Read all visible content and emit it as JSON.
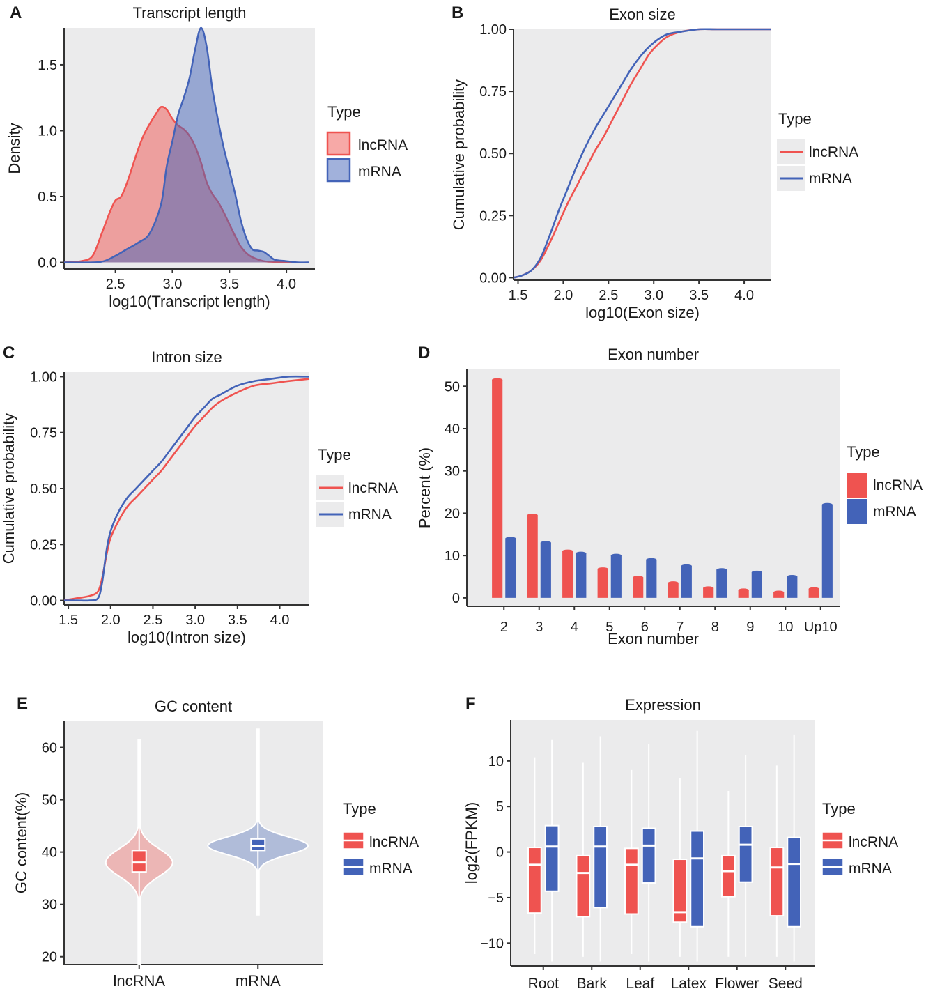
{
  "colors": {
    "lncrna": "#ef5350",
    "mrna": "#4363b8",
    "panel_bg": "#ebebec",
    "axis": "#333333"
  },
  "chart_data": [
    {
      "id": "A",
      "panel_label": "A",
      "type": "area",
      "title": "Transcript length",
      "xlabel": "log10(Transcript length)",
      "ylabel": "Density",
      "xlim": [
        2.05,
        4.25
      ],
      "ylim": [
        -0.05,
        1.78
      ],
      "xticks": [
        2.5,
        3.0,
        3.5,
        4.0
      ],
      "yticks": [
        0.0,
        0.5,
        1.0,
        1.5
      ],
      "xtick_labels": [
        "2.5",
        "3.0",
        "3.5",
        "4.0"
      ],
      "ytick_labels": [
        "0.0",
        "0.5",
        "1.0",
        "1.5"
      ],
      "legend": {
        "title": "Type",
        "entries": [
          "lncRNA",
          "mRNA"
        ]
      },
      "series": [
        {
          "name": "lncRNA",
          "x": [
            2.05,
            2.2,
            2.3,
            2.38,
            2.45,
            2.5,
            2.55,
            2.6,
            2.65,
            2.7,
            2.75,
            2.8,
            2.85,
            2.9,
            2.95,
            3.0,
            3.05,
            3.1,
            3.15,
            3.2,
            3.25,
            3.3,
            3.35,
            3.4,
            3.45,
            3.5,
            3.55,
            3.6,
            3.65,
            3.7,
            3.8,
            3.9,
            4.05
          ],
          "y": [
            0.0,
            0.01,
            0.05,
            0.22,
            0.38,
            0.47,
            0.5,
            0.6,
            0.73,
            0.86,
            0.97,
            1.05,
            1.12,
            1.18,
            1.16,
            1.09,
            1.04,
            1.01,
            0.96,
            0.88,
            0.76,
            0.61,
            0.52,
            0.46,
            0.38,
            0.29,
            0.2,
            0.12,
            0.07,
            0.04,
            0.01,
            0.004,
            0.0
          ]
        },
        {
          "name": "mRNA",
          "x": [
            2.05,
            2.3,
            2.4,
            2.5,
            2.6,
            2.7,
            2.8,
            2.9,
            2.95,
            3.0,
            3.05,
            3.1,
            3.15,
            3.2,
            3.25,
            3.3,
            3.35,
            3.4,
            3.45,
            3.5,
            3.55,
            3.6,
            3.65,
            3.7,
            3.75,
            3.8,
            3.85,
            3.9,
            4.0,
            4.1,
            4.2
          ],
          "y": [
            0.0,
            0.0,
            0.01,
            0.05,
            0.1,
            0.15,
            0.22,
            0.44,
            0.73,
            0.92,
            1.12,
            1.25,
            1.4,
            1.62,
            1.78,
            1.64,
            1.32,
            1.08,
            0.87,
            0.7,
            0.52,
            0.32,
            0.18,
            0.1,
            0.09,
            0.08,
            0.05,
            0.02,
            0.01,
            0.0,
            0.0
          ]
        }
      ]
    },
    {
      "id": "B",
      "panel_label": "B",
      "type": "line",
      "title": "Exon size",
      "xlabel": "log10(Exon size)",
      "ylabel": "Cumulative probability",
      "xlim": [
        1.45,
        4.3
      ],
      "ylim": [
        -0.01,
        1.0
      ],
      "xticks": [
        1.5,
        2.0,
        2.5,
        3.0,
        3.5,
        4.0
      ],
      "yticks": [
        0.0,
        0.25,
        0.5,
        0.75,
        1.0
      ],
      "xtick_labels": [
        "1.5",
        "2.0",
        "2.5",
        "3.0",
        "3.5",
        "4.0"
      ],
      "ytick_labels": [
        "0.00",
        "0.25",
        "0.50",
        "0.75",
        "1.00"
      ],
      "legend": {
        "title": "Type",
        "entries": [
          "lncRNA",
          "mRNA"
        ]
      },
      "series": [
        {
          "name": "lncRNA",
          "x": [
            1.45,
            1.55,
            1.65,
            1.75,
            1.85,
            1.95,
            2.05,
            2.15,
            2.25,
            2.35,
            2.45,
            2.55,
            2.65,
            2.75,
            2.85,
            2.95,
            3.05,
            3.15,
            3.3,
            3.5,
            3.7,
            4.0,
            4.3
          ],
          "y": [
            0.0,
            0.01,
            0.03,
            0.07,
            0.14,
            0.22,
            0.3,
            0.37,
            0.44,
            0.51,
            0.57,
            0.64,
            0.71,
            0.78,
            0.84,
            0.9,
            0.94,
            0.97,
            0.99,
            1.0,
            1.0,
            1.0,
            1.0
          ]
        },
        {
          "name": "mRNA",
          "x": [
            1.45,
            1.55,
            1.65,
            1.75,
            1.85,
            1.95,
            2.05,
            2.15,
            2.25,
            2.35,
            2.45,
            2.55,
            2.65,
            2.75,
            2.85,
            2.95,
            3.05,
            3.15,
            3.3,
            3.5,
            3.7,
            4.0,
            4.3
          ],
          "y": [
            0.0,
            0.01,
            0.03,
            0.08,
            0.17,
            0.27,
            0.36,
            0.45,
            0.53,
            0.6,
            0.66,
            0.72,
            0.78,
            0.84,
            0.89,
            0.93,
            0.96,
            0.98,
            0.99,
            1.0,
            1.0,
            1.0,
            1.0
          ]
        }
      ]
    },
    {
      "id": "C",
      "panel_label": "C",
      "type": "line",
      "title": "Intron size",
      "xlabel": "log10(Intron size)",
      "ylabel": "Cumulative probability",
      "xlim": [
        1.45,
        4.35
      ],
      "ylim": [
        -0.02,
        1.02
      ],
      "xticks": [
        1.5,
        2.0,
        2.5,
        3.0,
        3.5,
        4.0
      ],
      "yticks": [
        0.0,
        0.25,
        0.5,
        0.75,
        1.0
      ],
      "xtick_labels": [
        "1.5",
        "2.0",
        "2.5",
        "3.0",
        "3.5",
        "4.0"
      ],
      "ytick_labels": [
        "0.00",
        "0.25",
        "0.50",
        "0.75",
        "1.00"
      ],
      "legend": {
        "title": "Type",
        "entries": [
          "lncRNA",
          "mRNA"
        ]
      },
      "series": [
        {
          "name": "lncRNA",
          "x": [
            1.45,
            1.6,
            1.75,
            1.85,
            1.9,
            1.95,
            2.0,
            2.1,
            2.2,
            2.3,
            2.4,
            2.5,
            2.6,
            2.7,
            2.8,
            2.9,
            3.0,
            3.1,
            3.2,
            3.3,
            3.5,
            3.7,
            3.9,
            4.1,
            4.35
          ],
          "y": [
            0.0,
            0.01,
            0.02,
            0.04,
            0.1,
            0.2,
            0.28,
            0.36,
            0.42,
            0.46,
            0.5,
            0.54,
            0.58,
            0.63,
            0.68,
            0.73,
            0.78,
            0.82,
            0.86,
            0.89,
            0.93,
            0.96,
            0.97,
            0.98,
            0.99
          ]
        },
        {
          "name": "mRNA",
          "x": [
            1.45,
            1.6,
            1.75,
            1.85,
            1.9,
            1.95,
            2.0,
            2.1,
            2.2,
            2.3,
            2.4,
            2.5,
            2.6,
            2.7,
            2.8,
            2.9,
            3.0,
            3.1,
            3.2,
            3.3,
            3.5,
            3.7,
            3.9,
            4.1,
            4.35
          ],
          "y": [
            0.0,
            0.0,
            0.0,
            0.01,
            0.08,
            0.22,
            0.31,
            0.4,
            0.46,
            0.5,
            0.54,
            0.58,
            0.62,
            0.67,
            0.72,
            0.77,
            0.82,
            0.86,
            0.9,
            0.92,
            0.96,
            0.98,
            0.99,
            1.0,
            1.0
          ]
        }
      ]
    },
    {
      "id": "D",
      "panel_label": "D",
      "type": "bar",
      "title": "Exon number",
      "xlabel": "Exon number",
      "ylabel": "Percent (%)",
      "ylim": [
        -2,
        54
      ],
      "yticks": [
        0,
        10,
        20,
        30,
        40,
        50
      ],
      "ytick_labels": [
        "0",
        "10",
        "20",
        "30",
        "40",
        "50"
      ],
      "categories": [
        "2",
        "3",
        "4",
        "5",
        "6",
        "7",
        "8",
        "9",
        "10",
        "Up10"
      ],
      "legend": {
        "title": "Type",
        "entries": [
          "lncRNA",
          "mRNA"
        ]
      },
      "series": [
        {
          "name": "lncRNA",
          "values": [
            51.5,
            19.5,
            11.0,
            6.8,
            4.8,
            3.5,
            2.3,
            1.8,
            1.3,
            2.1
          ]
        },
        {
          "name": "mRNA",
          "values": [
            14.0,
            13.0,
            10.5,
            10.0,
            9.0,
            7.5,
            6.6,
            6.0,
            5.0,
            22.0
          ]
        }
      ]
    },
    {
      "id": "E",
      "panel_label": "E",
      "type": "violin",
      "title": "GC content",
      "xlabel": "",
      "ylabel": "GC content(%)",
      "ylim": [
        18.5,
        65
      ],
      "yticks": [
        20,
        30,
        40,
        50,
        60
      ],
      "ytick_labels": [
        "20",
        "30",
        "40",
        "50",
        "60"
      ],
      "categories": [
        "lncRNA",
        "mRNA"
      ],
      "legend": {
        "title": "Type",
        "entries": [
          "lncRNA",
          "mRNA"
        ]
      },
      "series": [
        {
          "name": "lncRNA",
          "min": 18,
          "q1": 36.2,
          "median": 38.0,
          "q3": 40.3,
          "max": 61.5,
          "mode": 38.0
        },
        {
          "name": "mRNA",
          "min": 28,
          "q1": 40.3,
          "median": 41.2,
          "q3": 42.5,
          "max": 63.5,
          "mode": 41.2
        }
      ]
    },
    {
      "id": "F",
      "panel_label": "F",
      "type": "box",
      "title": "Expression",
      "xlabel": "",
      "ylabel": "log2(FPKM)",
      "ylim": [
        -12.5,
        14.5
      ],
      "yticks": [
        -10,
        -5,
        0,
        5,
        10
      ],
      "ytick_labels": [
        "−10",
        "−5",
        "0",
        "5",
        "10"
      ],
      "categories": [
        "Root",
        "Bark",
        "Leaf",
        "Latex",
        "Flower",
        "Seed"
      ],
      "legend": {
        "title": "Type",
        "entries": [
          "lncRNA",
          "mRNA"
        ]
      },
      "series": [
        {
          "name": "lncRNA",
          "boxes": [
            {
              "min": -11.2,
              "q1": -6.7,
              "median": -1.4,
              "q3": 0.5,
              "max": 10.4
            },
            {
              "min": -11.5,
              "q1": -7.1,
              "median": -2.3,
              "q3": -0.4,
              "max": 9.8
            },
            {
              "min": -11.2,
              "q1": -6.8,
              "median": -1.4,
              "q3": 0.4,
              "max": 9.0
            },
            {
              "min": -11.5,
              "q1": -7.7,
              "median": -6.6,
              "q3": -0.8,
              "max": 8.1
            },
            {
              "min": -11.5,
              "q1": -4.9,
              "median": -2.1,
              "q3": -0.4,
              "max": 6.7
            },
            {
              "min": -11.5,
              "q1": -7.0,
              "median": -1.7,
              "q3": 0.5,
              "max": 9.5
            }
          ]
        },
        {
          "name": "mRNA",
          "boxes": [
            {
              "min": -12.0,
              "q1": -4.3,
              "median": 0.6,
              "q3": 2.9,
              "max": 12.3
            },
            {
              "min": -12.0,
              "q1": -6.1,
              "median": 0.6,
              "q3": 2.8,
              "max": 12.7
            },
            {
              "min": -12.0,
              "q1": -3.4,
              "median": 0.7,
              "q3": 2.6,
              "max": 11.9
            },
            {
              "min": -12.0,
              "q1": -8.2,
              "median": -0.7,
              "q3": 2.3,
              "max": 13.3
            },
            {
              "min": -11.5,
              "q1": -3.3,
              "median": 0.8,
              "q3": 2.8,
              "max": 10.6
            },
            {
              "min": -12.0,
              "q1": -8.2,
              "median": -1.3,
              "q3": 1.6,
              "max": 12.9
            }
          ]
        }
      ]
    }
  ]
}
